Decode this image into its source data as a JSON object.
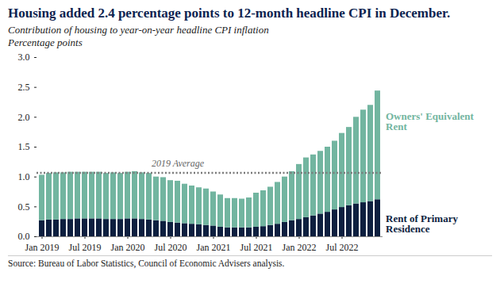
{
  "chart_data": {
    "type": "bar",
    "stacked": true,
    "title": "Housing added 2.4 percentage points to 12-month headline CPI in December.",
    "subtitle": "Contribution of housing to year-on-year headline CPI inflation",
    "y_label": "Percentage points",
    "source": "Source: Bureau of Labor Statistics, Council of Economic Advisers analysis.",
    "categories": [
      "Jan 2019",
      null,
      null,
      null,
      null,
      null,
      "Jul 2019",
      null,
      null,
      null,
      null,
      null,
      "Jan 2020",
      null,
      null,
      null,
      null,
      null,
      "Jul 2020",
      null,
      null,
      null,
      null,
      null,
      "Jan 2021",
      null,
      null,
      null,
      null,
      null,
      "Jul 2021",
      null,
      null,
      null,
      null,
      null,
      "Jan 2022",
      null,
      null,
      null,
      null,
      null,
      "Jul 2022",
      null,
      null,
      null,
      null,
      null
    ],
    "series": [
      {
        "name": "Rent of Primary Residence",
        "color": "#0d1f3f",
        "values": [
          0.27,
          0.28,
          0.28,
          0.29,
          0.29,
          0.3,
          0.3,
          0.3,
          0.3,
          0.29,
          0.29,
          0.29,
          0.3,
          0.3,
          0.29,
          0.28,
          0.27,
          0.26,
          0.24,
          0.23,
          0.22,
          0.21,
          0.2,
          0.19,
          0.18,
          0.16,
          0.15,
          0.15,
          0.15,
          0.15,
          0.16,
          0.17,
          0.19,
          0.21,
          0.24,
          0.27,
          0.29,
          0.32,
          0.35,
          0.38,
          0.41,
          0.45,
          0.49,
          0.52,
          0.55,
          0.57,
          0.59,
          0.62
        ]
      },
      {
        "name": "Owners' Equivalent Rent",
        "color": "#72b5a0",
        "values": [
          0.76,
          0.78,
          0.79,
          0.78,
          0.79,
          0.78,
          0.78,
          0.78,
          0.78,
          0.77,
          0.78,
          0.77,
          0.78,
          0.79,
          0.78,
          0.78,
          0.73,
          0.73,
          0.7,
          0.7,
          0.66,
          0.64,
          0.62,
          0.61,
          0.57,
          0.54,
          0.49,
          0.49,
          0.48,
          0.5,
          0.57,
          0.6,
          0.64,
          0.7,
          0.76,
          0.82,
          0.92,
          1.0,
          1.02,
          1.05,
          1.09,
          1.15,
          1.24,
          1.31,
          1.45,
          1.55,
          1.61,
          1.82
        ]
      }
    ],
    "reference_line": {
      "value": 1.07,
      "label": "2019 Average"
    },
    "ylim": [
      0,
      3
    ],
    "yticks": [
      {
        "value": 0,
        "label": "0.0"
      },
      {
        "value": 0.5,
        "label": "0.5"
      },
      {
        "value": 1,
        "label": "1.0"
      },
      {
        "value": 1.5,
        "label": "1.5"
      },
      {
        "value": 2,
        "label": "2.0"
      },
      {
        "value": 2.5,
        "label": "2.5"
      },
      {
        "value": 3,
        "label": "3.0"
      }
    ],
    "grid": false
  }
}
